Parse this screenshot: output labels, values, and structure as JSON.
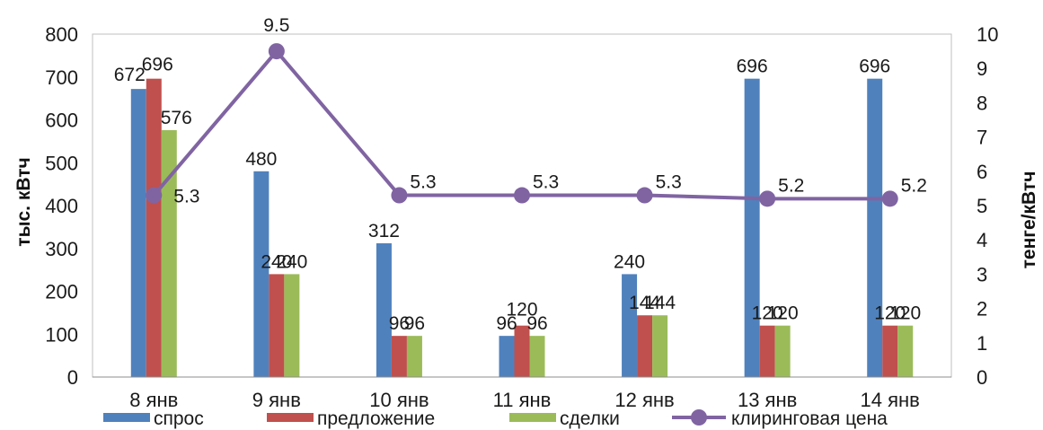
{
  "chart_data": {
    "type": "bar",
    "categories": [
      "8 янв",
      "9 янв",
      "10 янв",
      "11 янв",
      "12 янв",
      "13 янв",
      "14 янв"
    ],
    "series": [
      {
        "name": "спрос",
        "axis": "left",
        "color": "#4f81bd",
        "values": [
          672,
          480,
          312,
          96,
          240,
          696,
          696
        ]
      },
      {
        "name": "предложение",
        "axis": "left",
        "color": "#c0504d",
        "values": [
          696,
          240,
          96,
          120,
          144,
          120,
          120
        ]
      },
      {
        "name": "сделки",
        "axis": "left",
        "color": "#9bbb59",
        "values": [
          576,
          240,
          96,
          96,
          144,
          120,
          120
        ]
      },
      {
        "name": "клиринговая цена",
        "axis": "right",
        "type": "line",
        "color": "#8064a2",
        "values": [
          5.3,
          9.5,
          5.3,
          5.3,
          5.3,
          5.2,
          5.2
        ]
      }
    ],
    "data_labels": {
      "спрос": [
        "672",
        "480",
        "312",
        "96",
        "240",
        "696",
        "696"
      ],
      "предложение": [
        "696",
        "240",
        "96",
        "120",
        "144",
        "120",
        "120"
      ],
      "сделки": [
        "576",
        "240",
        "96",
        "96",
        "144",
        "120",
        "120"
      ],
      "клиринговая цена": [
        "5.3",
        "9.5",
        "5.3",
        "5.3",
        "5.3",
        "5.2",
        "5.2"
      ]
    },
    "ylabel": "тыс. кВтч",
    "y2label": "тенге/кВтч",
    "ylim": [
      0,
      800
    ],
    "y2lim": [
      0,
      10
    ],
    "yticks": [
      "0",
      "100",
      "200",
      "300",
      "400",
      "500",
      "600",
      "700",
      "800"
    ],
    "y2ticks": [
      "0",
      "1",
      "2",
      "3",
      "4",
      "5",
      "6",
      "7",
      "8",
      "9",
      "10"
    ],
    "grid": false,
    "legend_position": "bottom"
  }
}
